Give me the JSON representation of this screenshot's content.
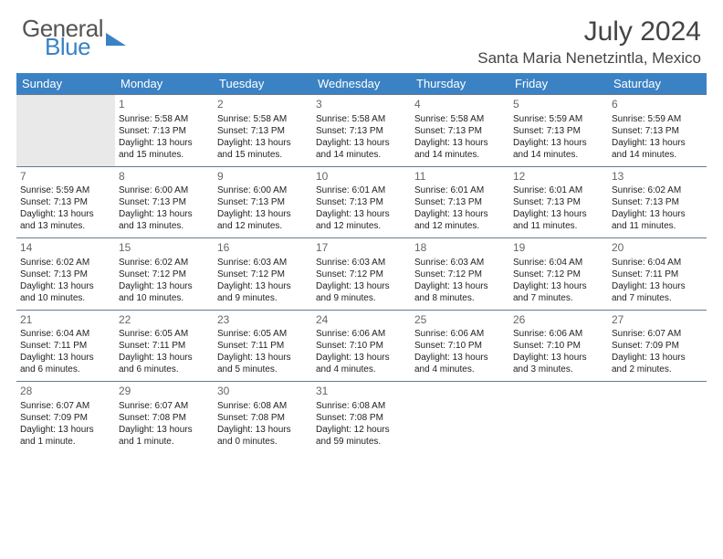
{
  "brand": {
    "part1": "General",
    "part2": "Blue"
  },
  "title": "July 2024",
  "location": "Santa Maria Nenetzintla, Mexico",
  "colors": {
    "header_bg": "#3b82c4",
    "header_fg": "#ffffff",
    "brand_blue": "#3b82c4",
    "brand_gray": "#555555",
    "grid_line": "#6a7a8a",
    "empty_bg": "#e9e9e9",
    "text": "#222222",
    "daynum": "#666666"
  },
  "day_headers": [
    "Sunday",
    "Monday",
    "Tuesday",
    "Wednesday",
    "Thursday",
    "Friday",
    "Saturday"
  ],
  "weeks": [
    [
      null,
      {
        "n": "1",
        "sr": "Sunrise: 5:58 AM",
        "ss": "Sunset: 7:13 PM",
        "d1": "Daylight: 13 hours",
        "d2": "and 15 minutes."
      },
      {
        "n": "2",
        "sr": "Sunrise: 5:58 AM",
        "ss": "Sunset: 7:13 PM",
        "d1": "Daylight: 13 hours",
        "d2": "and 15 minutes."
      },
      {
        "n": "3",
        "sr": "Sunrise: 5:58 AM",
        "ss": "Sunset: 7:13 PM",
        "d1": "Daylight: 13 hours",
        "d2": "and 14 minutes."
      },
      {
        "n": "4",
        "sr": "Sunrise: 5:58 AM",
        "ss": "Sunset: 7:13 PM",
        "d1": "Daylight: 13 hours",
        "d2": "and 14 minutes."
      },
      {
        "n": "5",
        "sr": "Sunrise: 5:59 AM",
        "ss": "Sunset: 7:13 PM",
        "d1": "Daylight: 13 hours",
        "d2": "and 14 minutes."
      },
      {
        "n": "6",
        "sr": "Sunrise: 5:59 AM",
        "ss": "Sunset: 7:13 PM",
        "d1": "Daylight: 13 hours",
        "d2": "and 14 minutes."
      }
    ],
    [
      {
        "n": "7",
        "sr": "Sunrise: 5:59 AM",
        "ss": "Sunset: 7:13 PM",
        "d1": "Daylight: 13 hours",
        "d2": "and 13 minutes."
      },
      {
        "n": "8",
        "sr": "Sunrise: 6:00 AM",
        "ss": "Sunset: 7:13 PM",
        "d1": "Daylight: 13 hours",
        "d2": "and 13 minutes."
      },
      {
        "n": "9",
        "sr": "Sunrise: 6:00 AM",
        "ss": "Sunset: 7:13 PM",
        "d1": "Daylight: 13 hours",
        "d2": "and 12 minutes."
      },
      {
        "n": "10",
        "sr": "Sunrise: 6:01 AM",
        "ss": "Sunset: 7:13 PM",
        "d1": "Daylight: 13 hours",
        "d2": "and 12 minutes."
      },
      {
        "n": "11",
        "sr": "Sunrise: 6:01 AM",
        "ss": "Sunset: 7:13 PM",
        "d1": "Daylight: 13 hours",
        "d2": "and 12 minutes."
      },
      {
        "n": "12",
        "sr": "Sunrise: 6:01 AM",
        "ss": "Sunset: 7:13 PM",
        "d1": "Daylight: 13 hours",
        "d2": "and 11 minutes."
      },
      {
        "n": "13",
        "sr": "Sunrise: 6:02 AM",
        "ss": "Sunset: 7:13 PM",
        "d1": "Daylight: 13 hours",
        "d2": "and 11 minutes."
      }
    ],
    [
      {
        "n": "14",
        "sr": "Sunrise: 6:02 AM",
        "ss": "Sunset: 7:13 PM",
        "d1": "Daylight: 13 hours",
        "d2": "and 10 minutes."
      },
      {
        "n": "15",
        "sr": "Sunrise: 6:02 AM",
        "ss": "Sunset: 7:12 PM",
        "d1": "Daylight: 13 hours",
        "d2": "and 10 minutes."
      },
      {
        "n": "16",
        "sr": "Sunrise: 6:03 AM",
        "ss": "Sunset: 7:12 PM",
        "d1": "Daylight: 13 hours",
        "d2": "and 9 minutes."
      },
      {
        "n": "17",
        "sr": "Sunrise: 6:03 AM",
        "ss": "Sunset: 7:12 PM",
        "d1": "Daylight: 13 hours",
        "d2": "and 9 minutes."
      },
      {
        "n": "18",
        "sr": "Sunrise: 6:03 AM",
        "ss": "Sunset: 7:12 PM",
        "d1": "Daylight: 13 hours",
        "d2": "and 8 minutes."
      },
      {
        "n": "19",
        "sr": "Sunrise: 6:04 AM",
        "ss": "Sunset: 7:12 PM",
        "d1": "Daylight: 13 hours",
        "d2": "and 7 minutes."
      },
      {
        "n": "20",
        "sr": "Sunrise: 6:04 AM",
        "ss": "Sunset: 7:11 PM",
        "d1": "Daylight: 13 hours",
        "d2": "and 7 minutes."
      }
    ],
    [
      {
        "n": "21",
        "sr": "Sunrise: 6:04 AM",
        "ss": "Sunset: 7:11 PM",
        "d1": "Daylight: 13 hours",
        "d2": "and 6 minutes."
      },
      {
        "n": "22",
        "sr": "Sunrise: 6:05 AM",
        "ss": "Sunset: 7:11 PM",
        "d1": "Daylight: 13 hours",
        "d2": "and 6 minutes."
      },
      {
        "n": "23",
        "sr": "Sunrise: 6:05 AM",
        "ss": "Sunset: 7:11 PM",
        "d1": "Daylight: 13 hours",
        "d2": "and 5 minutes."
      },
      {
        "n": "24",
        "sr": "Sunrise: 6:06 AM",
        "ss": "Sunset: 7:10 PM",
        "d1": "Daylight: 13 hours",
        "d2": "and 4 minutes."
      },
      {
        "n": "25",
        "sr": "Sunrise: 6:06 AM",
        "ss": "Sunset: 7:10 PM",
        "d1": "Daylight: 13 hours",
        "d2": "and 4 minutes."
      },
      {
        "n": "26",
        "sr": "Sunrise: 6:06 AM",
        "ss": "Sunset: 7:10 PM",
        "d1": "Daylight: 13 hours",
        "d2": "and 3 minutes."
      },
      {
        "n": "27",
        "sr": "Sunrise: 6:07 AM",
        "ss": "Sunset: 7:09 PM",
        "d1": "Daylight: 13 hours",
        "d2": "and 2 minutes."
      }
    ],
    [
      {
        "n": "28",
        "sr": "Sunrise: 6:07 AM",
        "ss": "Sunset: 7:09 PM",
        "d1": "Daylight: 13 hours",
        "d2": "and 1 minute."
      },
      {
        "n": "29",
        "sr": "Sunrise: 6:07 AM",
        "ss": "Sunset: 7:08 PM",
        "d1": "Daylight: 13 hours",
        "d2": "and 1 minute."
      },
      {
        "n": "30",
        "sr": "Sunrise: 6:08 AM",
        "ss": "Sunset: 7:08 PM",
        "d1": "Daylight: 13 hours",
        "d2": "and 0 minutes."
      },
      {
        "n": "31",
        "sr": "Sunrise: 6:08 AM",
        "ss": "Sunset: 7:08 PM",
        "d1": "Daylight: 12 hours",
        "d2": "and 59 minutes."
      },
      null,
      null,
      null
    ]
  ]
}
